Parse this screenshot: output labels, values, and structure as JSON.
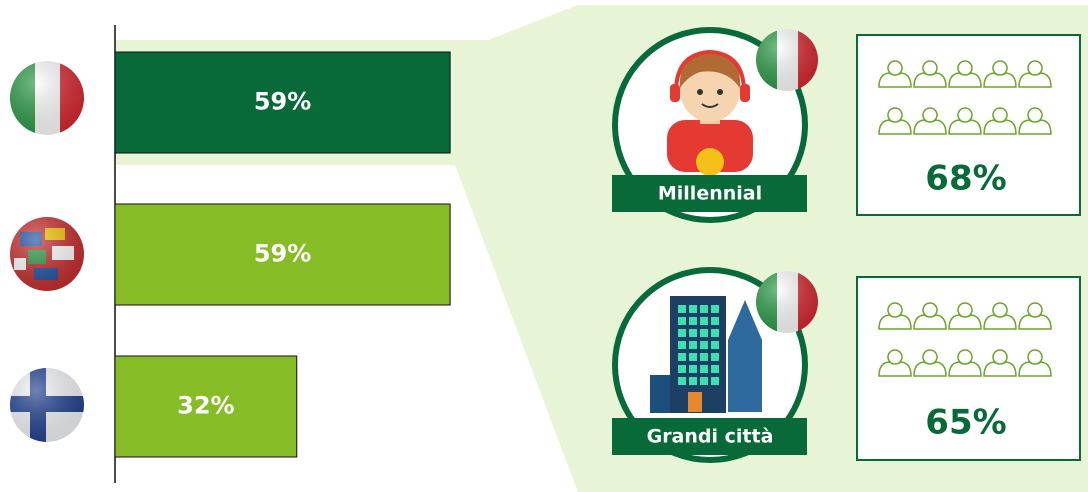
{
  "chart_data": {
    "type": "bar",
    "orientation": "horizontal",
    "categories": [
      null,
      null,
      null
    ],
    "values": [
      59,
      59,
      32
    ],
    "value_labels": [
      "59%",
      "59%",
      "32%"
    ],
    "colors": [
      "#076a38",
      "#86bc25",
      "#86bc25"
    ],
    "xlim": [
      0,
      100
    ]
  },
  "panels": [
    {
      "label": "Millennial",
      "value": 68,
      "value_label": "68%"
    },
    {
      "label": "Grandi città",
      "value": 65,
      "value_label": "65%"
    }
  ]
}
